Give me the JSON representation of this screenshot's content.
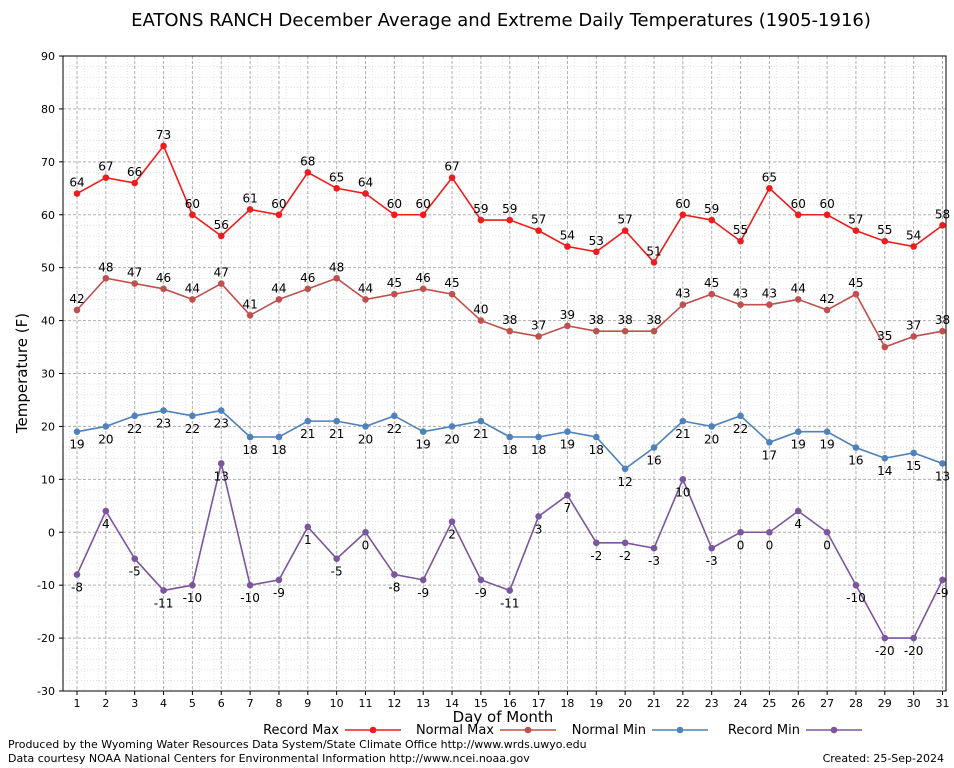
{
  "chart_data": {
    "type": "line",
    "title": "EATONS RANCH December Average and Extreme Daily Temperatures (1905-1916)",
    "xlabel": "Day of Month",
    "ylabel": "Temperature (F)",
    "ylim": [
      -30,
      90
    ],
    "yticks": [
      -30,
      -20,
      -10,
      0,
      10,
      20,
      30,
      40,
      50,
      60,
      70,
      80,
      90
    ],
    "x": [
      1,
      2,
      3,
      4,
      5,
      6,
      7,
      8,
      9,
      10,
      11,
      12,
      13,
      14,
      15,
      16,
      17,
      18,
      19,
      20,
      21,
      22,
      23,
      24,
      25,
      26,
      27,
      28,
      29,
      30,
      31
    ],
    "grid": true,
    "legend_position": "bottom",
    "series": [
      {
        "name": "Record Max",
        "color": "#ee1c1c",
        "label_position": "above",
        "values": [
          64,
          67,
          66,
          73,
          60,
          56,
          61,
          60,
          68,
          65,
          64,
          60,
          60,
          67,
          59,
          59,
          57,
          54,
          53,
          57,
          51,
          60,
          59,
          55,
          65,
          60,
          60,
          57,
          55,
          54,
          58
        ]
      },
      {
        "name": "Normal Max",
        "color": "#c0504d",
        "label_position": "above",
        "values": [
          42,
          48,
          47,
          46,
          44,
          47,
          41,
          44,
          46,
          48,
          44,
          45,
          46,
          45,
          40,
          38,
          37,
          39,
          38,
          38,
          38,
          43,
          45,
          43,
          43,
          44,
          42,
          45,
          35,
          37,
          38
        ]
      },
      {
        "name": "Normal Min",
        "color": "#4f81bd",
        "label_position": "below",
        "values": [
          19,
          20,
          22,
          23,
          22,
          23,
          18,
          18,
          21,
          21,
          20,
          22,
          19,
          20,
          21,
          18,
          18,
          19,
          18,
          12,
          16,
          21,
          20,
          22,
          17,
          19,
          19,
          16,
          14,
          15,
          13
        ]
      },
      {
        "name": "Record Min",
        "color": "#7b559e",
        "label_position": "below",
        "values": [
          -8,
          4,
          -5,
          -11,
          -10,
          13,
          -10,
          -9,
          1,
          -5,
          0,
          -8,
          -9,
          2,
          -9,
          -11,
          3,
          7,
          -2,
          -2,
          -3,
          10,
          -3,
          0,
          0,
          4,
          0,
          -10,
          -20,
          -20,
          -9
        ]
      }
    ]
  },
  "footer": {
    "produced_by": "Produced by the Wyoming Water Resources Data System/State Climate Office http://www.wrds.uwyo.edu",
    "data_courtesy": "Data courtesy NOAA National Centers for Environmental Information http://www.ncei.noaa.gov",
    "created": "Created:  25-Sep-2024"
  }
}
